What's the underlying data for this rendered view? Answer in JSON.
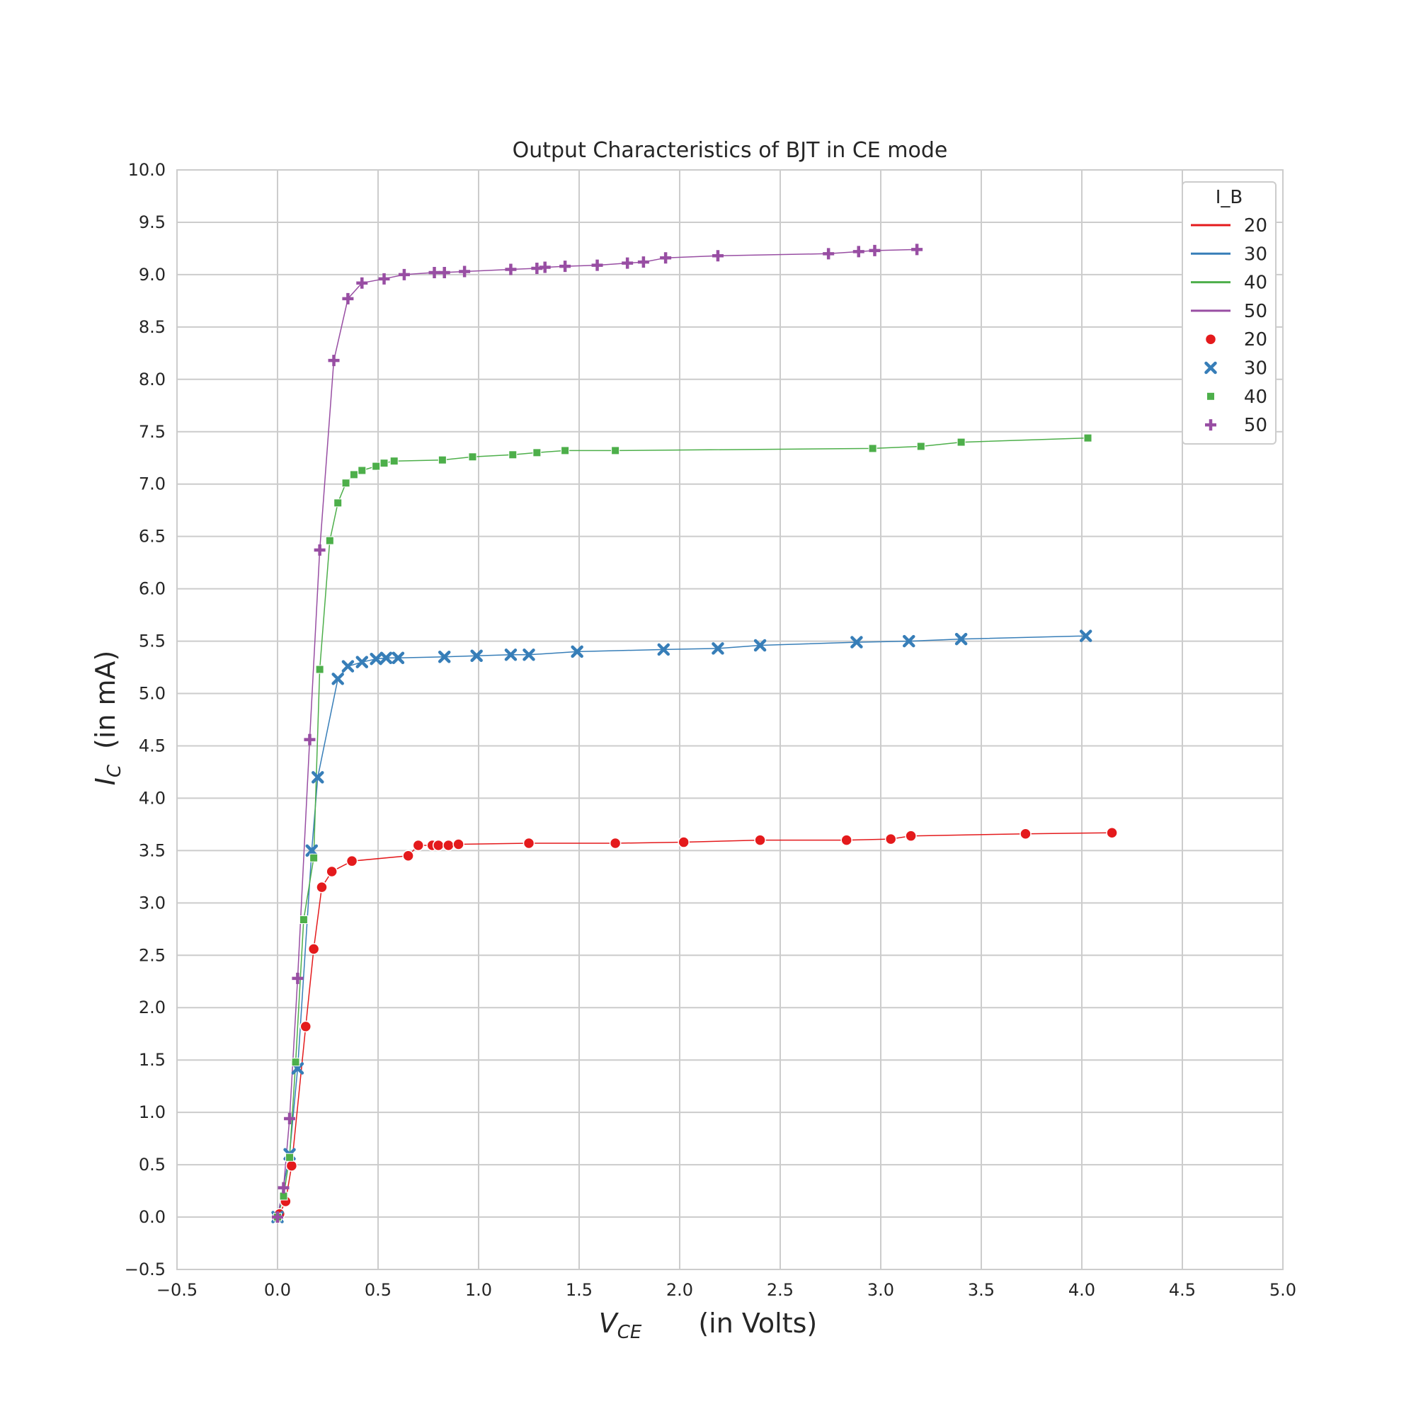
{
  "chart_data": {
    "type": "line+scatter",
    "title": "Output Characteristics of BJT in CE mode",
    "xlabel_symbol": "V",
    "xlabel_sub": "CE",
    "xlabel_unit": "(in Volts)",
    "ylabel_symbol": "I",
    "ylabel_sub": "C",
    "ylabel_unit": "(in mA)",
    "xlim": [
      -0.5,
      5.0
    ],
    "ylim": [
      -0.5,
      10.0
    ],
    "xticks": [
      -0.5,
      0.0,
      0.5,
      1.0,
      1.5,
      2.0,
      2.5,
      3.0,
      3.5,
      4.0,
      4.5,
      5.0
    ],
    "yticks": [
      -0.5,
      0.0,
      0.5,
      1.0,
      1.5,
      2.0,
      2.5,
      3.0,
      3.5,
      4.0,
      4.5,
      5.0,
      5.5,
      6.0,
      6.5,
      7.0,
      7.5,
      8.0,
      8.5,
      9.0,
      9.5,
      10.0
    ],
    "grid": true,
    "legend": {
      "title": "I_B",
      "position": "top-right"
    },
    "series": [
      {
        "name": "20",
        "color": "#e41a1c",
        "marker": "circle",
        "x": [
          0.0,
          0.01,
          0.04,
          0.07,
          0.14,
          0.18,
          0.22,
          0.27,
          0.37,
          0.65,
          0.7,
          0.77,
          0.8,
          0.85,
          0.9,
          1.25,
          1.68,
          2.02,
          2.4,
          2.83,
          3.05,
          3.15,
          3.72,
          4.15
        ],
        "y": [
          0.0,
          0.03,
          0.15,
          0.49,
          1.82,
          2.56,
          3.15,
          3.3,
          3.4,
          3.45,
          3.55,
          3.55,
          3.55,
          3.55,
          3.56,
          3.57,
          3.57,
          3.58,
          3.6,
          3.6,
          3.61,
          3.64,
          3.66,
          3.67
        ]
      },
      {
        "name": "30",
        "color": "#377eb8",
        "marker": "x",
        "x": [
          0.0,
          0.06,
          0.1,
          0.17,
          0.2,
          0.3,
          0.35,
          0.42,
          0.49,
          0.54,
          0.6,
          0.83,
          0.99,
          1.16,
          1.25,
          1.49,
          1.92,
          2.19,
          2.4,
          2.88,
          3.14,
          3.4,
          4.02
        ],
        "y": [
          0.0,
          0.6,
          1.42,
          3.5,
          4.2,
          5.14,
          5.26,
          5.3,
          5.33,
          5.34,
          5.34,
          5.35,
          5.36,
          5.37,
          5.37,
          5.4,
          5.42,
          5.43,
          5.46,
          5.49,
          5.5,
          5.52,
          5.55
        ]
      },
      {
        "name": "40",
        "color": "#4daf4a",
        "marker": "square",
        "x": [
          0.0,
          0.03,
          0.06,
          0.09,
          0.13,
          0.18,
          0.21,
          0.26,
          0.3,
          0.34,
          0.38,
          0.42,
          0.49,
          0.53,
          0.58,
          0.82,
          0.97,
          1.17,
          1.29,
          1.43,
          1.68,
          2.96,
          3.2,
          3.4,
          4.03
        ],
        "y": [
          0.0,
          0.2,
          0.57,
          1.48,
          2.84,
          3.43,
          5.23,
          6.46,
          6.82,
          7.01,
          7.09,
          7.13,
          7.17,
          7.2,
          7.22,
          7.23,
          7.26,
          7.28,
          7.3,
          7.32,
          7.32,
          7.34,
          7.36,
          7.4,
          7.44
        ]
      },
      {
        "name": "50",
        "color": "#984ea3",
        "marker": "plus",
        "x": [
          0.0,
          0.03,
          0.06,
          0.1,
          0.16,
          0.21,
          0.28,
          0.35,
          0.42,
          0.53,
          0.63,
          0.78,
          0.83,
          0.93,
          1.16,
          1.29,
          1.33,
          1.43,
          1.59,
          1.74,
          1.82,
          1.93,
          2.19,
          2.74,
          2.89,
          2.97,
          3.18
        ],
        "y": [
          0.0,
          0.28,
          0.94,
          2.28,
          4.56,
          6.37,
          8.18,
          8.77,
          8.92,
          8.96,
          9.0,
          9.02,
          9.02,
          9.03,
          9.05,
          9.06,
          9.07,
          9.08,
          9.09,
          9.11,
          9.12,
          9.16,
          9.18,
          9.2,
          9.22,
          9.23,
          9.24
        ]
      }
    ]
  }
}
